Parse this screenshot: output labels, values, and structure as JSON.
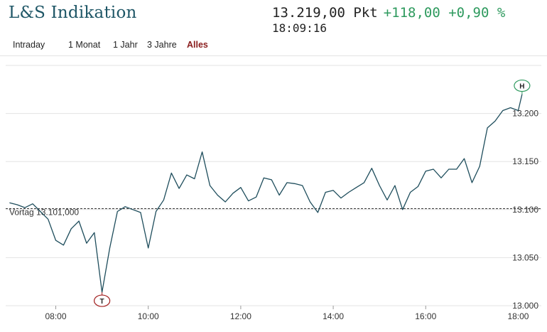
{
  "header": {
    "title": "L&S Indikation",
    "price": "13.219,00 Pkt",
    "change": "+118,00 +0,90 %",
    "time": "18:09:16"
  },
  "tabs": [
    {
      "label": "Intraday"
    },
    {
      "label": "1 Monat"
    },
    {
      "label": "1 Jahr"
    },
    {
      "label": "3 Jahre"
    },
    {
      "label": "Alles",
      "active": true
    }
  ],
  "colors": {
    "line": "#1e4d5c",
    "positive": "#2e9a5e",
    "low_marker": "#a01d1d",
    "high_marker": "#2e9a5e",
    "active_tab": "#8a1d1d"
  },
  "chart_data": {
    "type": "line",
    "title": "",
    "xlabel": "",
    "ylabel": "",
    "x_ticks": [
      "08:00",
      "10:00",
      "12:00",
      "14:00",
      "16:00",
      "18:00"
    ],
    "y_ticks": [
      "13.000",
      "13.050",
      "13.100",
      "13.150",
      "13.200"
    ],
    "ylim": [
      13000,
      13250
    ],
    "xlim": [
      "06:55",
      "18:30"
    ],
    "grid": true,
    "reference_line": {
      "label": "Vortag 13.101,000",
      "value": 13101
    },
    "markers": [
      {
        "label": "T",
        "time": "09:00",
        "value": 13014
      },
      {
        "label": "H",
        "time": "18:05",
        "value": 13220
      }
    ],
    "series": [
      {
        "x": [
          "07:00",
          "07:10",
          "07:20",
          "07:30",
          "07:40",
          "07:50",
          "08:00",
          "08:10",
          "08:20",
          "08:30",
          "08:40",
          "08:50",
          "09:00",
          "09:10",
          "09:20",
          "09:30",
          "09:40",
          "09:50",
          "10:00",
          "10:10",
          "10:20",
          "10:30",
          "10:40",
          "10:50",
          "11:00",
          "11:10",
          "11:20",
          "11:30",
          "11:40",
          "11:50",
          "12:00",
          "12:10",
          "12:20",
          "12:30",
          "12:40",
          "12:50",
          "13:00",
          "13:10",
          "13:20",
          "13:30",
          "13:40",
          "13:50",
          "14:00",
          "14:10",
          "14:20",
          "14:30",
          "14:40",
          "14:50",
          "15:00",
          "15:10",
          "15:20",
          "15:30",
          "15:40",
          "15:50",
          "16:00",
          "16:10",
          "16:20",
          "16:30",
          "16:40",
          "16:50",
          "17:00",
          "17:10",
          "17:20",
          "17:30",
          "17:40",
          "17:50",
          "18:00",
          "18:05"
        ],
        "values": [
          13107,
          13105,
          13102,
          13106,
          13098,
          13090,
          13068,
          13063,
          13080,
          13088,
          13065,
          13076,
          13014,
          13060,
          13098,
          13103,
          13100,
          13097,
          13060,
          13098,
          13110,
          13138,
          13122,
          13136,
          13132,
          13160,
          13125,
          13115,
          13108,
          13117,
          13123,
          13109,
          13113,
          13133,
          13131,
          13115,
          13128,
          13127,
          13125,
          13108,
          13097,
          13118,
          13120,
          13112,
          13118,
          13123,
          13128,
          13143,
          13125,
          13110,
          13125,
          13100,
          13118,
          13124,
          13140,
          13142,
          13133,
          13142,
          13142,
          13153,
          13128,
          13145,
          13185,
          13192,
          13203,
          13206,
          13203,
          13220
        ]
      }
    ]
  }
}
